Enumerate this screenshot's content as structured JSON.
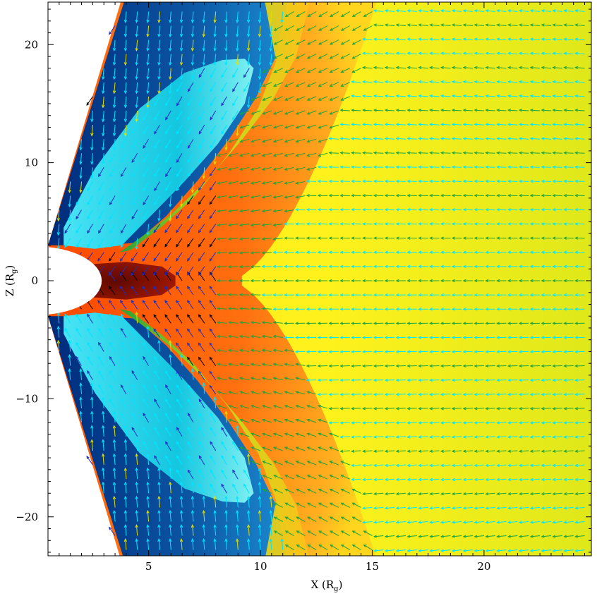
{
  "chart_data": {
    "type": "heatmap",
    "title": "",
    "xlabel": "X (R",
    "xlabel_sub": "g",
    "ylabel": "Z (R",
    "ylabel_sub": "g",
    "xlim": [
      0.5,
      24.8
    ],
    "ylim": [
      -23.3,
      23.6
    ],
    "x_ticks": [
      5,
      10,
      15,
      20
    ],
    "x_tick_labels": [
      "5",
      "10",
      "15",
      "20"
    ],
    "y_ticks": [
      -20,
      -10,
      0,
      10,
      20
    ],
    "y_tick_labels": [
      "−20",
      "−10",
      "0",
      "10",
      "20"
    ],
    "x_minor_step": 0.5,
    "y_minor_step": 1,
    "grid": false,
    "legend": "none",
    "obstacle": {
      "shape": "half-disk",
      "center": [
        0,
        0
      ],
      "radius": 2.9,
      "fill": "#ffffff"
    },
    "field_zones": [
      {
        "name": "inner lobe",
        "color": "#22d3e6"
      },
      {
        "name": "outer lobe",
        "color": "#0c56a4"
      },
      {
        "name": "boundary layer",
        "color": "#22a63a"
      },
      {
        "name": "shocked region",
        "color": "#ff6a10"
      },
      {
        "name": "core",
        "color": "#7a1000"
      },
      {
        "name": "ambient",
        "color": "#f7f31a"
      }
    ],
    "colormap": [
      "#001a66",
      "#0c56a4",
      "#22d3e6",
      "#22a63a",
      "#f7f31a",
      "#ff6a10",
      "#7a1000"
    ],
    "vector_field": {
      "x_step": 0.5,
      "z_step": 1.2,
      "ambient_direction": "-x",
      "lobe_direction": "toward-obstacle",
      "arrow_colors": [
        "#00e5ff",
        "#1fa33a",
        "#1f2dbf",
        "#000000",
        "#e0e000",
        "#c8102e"
      ]
    }
  }
}
